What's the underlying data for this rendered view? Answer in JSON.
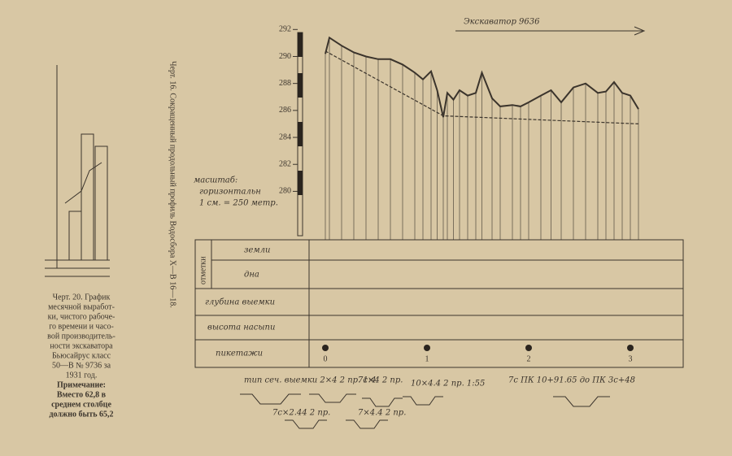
{
  "left_caption": [
    "Черт. 20. График",
    "месячной выработ-",
    "ки, чистого рабоче-",
    "го времени и часо-",
    "вой производитель-",
    "ности экскаватора",
    "Бьюсайрус класс",
    "50—В № 9736 за",
    "1931 год.",
    "Примечание:",
    "Вместо 62,8 в",
    "среднем столбце",
    "должно быть 65,2"
  ],
  "vertical_caption": "Черт. 16. Сокращенный продольный профиль Водосбора Х—В 16—18.",
  "profile": {
    "arrow_label": "Экскаватор 9636",
    "scale_note": [
      "масштаб:",
      "горизонтальн",
      "1 см. = 250 метр."
    ],
    "ylim": [
      279,
      292.5
    ],
    "yticks": [
      280,
      282,
      284,
      286,
      288,
      290,
      292
    ],
    "ground": {
      "x": [
        0,
        0.04,
        0.16,
        0.28,
        0.4,
        0.52,
        0.64,
        0.76,
        0.88,
        0.96,
        1.04,
        1.1,
        1.16,
        1.2,
        1.26,
        1.32,
        1.4,
        1.48,
        1.54,
        1.64,
        1.72,
        1.84,
        1.92,
        2.0,
        2.12,
        2.22,
        2.32,
        2.44,
        2.56,
        2.68,
        2.76,
        2.84,
        2.92,
        3.0,
        3.08
      ],
      "values": [
        290.2,
        291.4,
        290.8,
        290.3,
        290.0,
        289.8,
        289.8,
        289.4,
        288.8,
        288.3,
        288.9,
        287.5,
        285.5,
        287.3,
        286.8,
        287.5,
        287.1,
        287.3,
        288.8,
        286.9,
        286.3,
        286.4,
        286.3,
        286.6,
        287.1,
        287.5,
        286.6,
        287.7,
        288.0,
        287.3,
        287.4,
        288.1,
        287.3,
        287.1,
        286.1
      ]
    },
    "bottom": {
      "x": [
        0,
        1.16,
        3.08
      ],
      "values": [
        290.4,
        285.6,
        285.0
      ]
    }
  },
  "table": {
    "group_label": "отметки",
    "row_labels": [
      "земли",
      "дна",
      "глубина выемки",
      "высота насыпи",
      "пикетажи"
    ],
    "pickets": [
      0,
      1,
      2,
      3
    ]
  },
  "sections": [
    "тип сеч. выемки 2×4 2 пр. 1:4",
    "7с×4 2 пр.",
    "10×4.4 2 пр. 1:55",
    "7×4.4 2 пр.",
    "7с×2.44 2 пр.",
    "7с ПК 10+91.65 до ПК 3с+48"
  ]
}
